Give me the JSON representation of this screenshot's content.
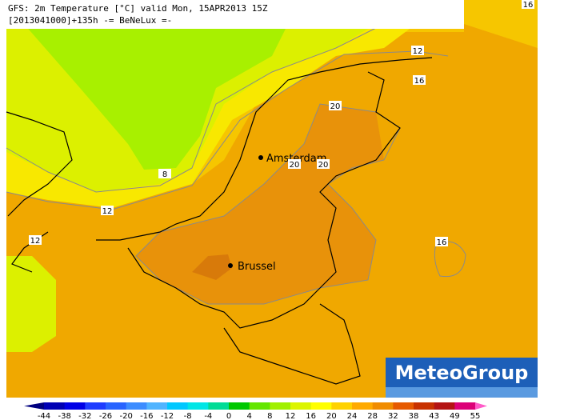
{
  "header": {
    "title": "GFS: 2m Temperature [°C] valid Mon, 15APR2013 15Z",
    "subtitle": "[2013041000]+135h -= BeNeLux =-"
  },
  "map": {
    "cities": [
      "Amsterdam",
      "Brussel"
    ],
    "contour_labels": [
      12,
      16,
      20,
      8,
      12,
      12,
      16,
      20,
      20,
      16
    ]
  },
  "logo": "MeteoGroup",
  "colorbar": {
    "ticks": [
      -44,
      -38,
      -32,
      -26,
      -20,
      -16,
      -12,
      -8,
      -4,
      0,
      4,
      8,
      12,
      16,
      20,
      24,
      28,
      32,
      38,
      43,
      49,
      55
    ],
    "colors": [
      "#00007f",
      "#0000b4",
      "#0000e6",
      "#1e3cff",
      "#2864ff",
      "#3c8cff",
      "#50b4ff",
      "#00c8ff",
      "#00e6e6",
      "#00dc96",
      "#00c800",
      "#64e600",
      "#a0f000",
      "#dcf500",
      "#ffff00",
      "#ffd200",
      "#ffaa00",
      "#f08c00",
      "#e65a00",
      "#c83200",
      "#b41414",
      "#dc0078",
      "#ff5ac8"
    ]
  }
}
